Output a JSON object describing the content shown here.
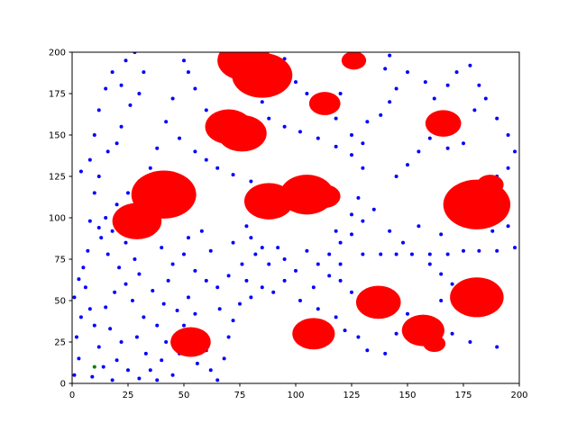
{
  "chart_data": {
    "type": "scatter",
    "xlim": [
      0,
      200
    ],
    "ylim": [
      0,
      200
    ],
    "xticks": [
      0,
      25,
      50,
      75,
      100,
      125,
      150,
      175,
      200
    ],
    "yticks": [
      0,
      25,
      50,
      75,
      100,
      125,
      150,
      175,
      200
    ],
    "points": {
      "color": "#0000ff",
      "x": [
        1,
        3,
        2,
        4,
        1,
        6,
        3,
        8,
        10,
        12,
        14,
        9,
        18,
        20,
        22,
        17,
        15,
        19,
        24,
        21,
        16,
        13,
        18,
        24,
        28,
        30,
        27,
        32,
        29,
        33,
        35,
        38,
        40,
        42,
        38,
        41,
        36,
        43,
        45,
        40,
        34,
        8,
        12,
        5,
        7,
        25,
        30,
        45,
        48,
        50,
        47,
        52,
        55,
        58,
        60,
        56,
        62,
        65,
        68,
        70,
        72,
        66,
        75,
        80,
        78,
        85,
        90,
        95,
        100,
        95,
        88,
        82,
        76,
        70,
        65,
        60,
        55,
        50,
        52,
        58,
        62,
        72,
        80,
        78,
        85,
        92,
        105,
        110,
        115,
        108,
        102,
        110,
        118,
        122,
        128,
        132,
        140,
        145,
        150,
        125,
        120,
        115,
        120,
        118,
        125,
        130,
        125,
        120,
        130,
        138,
        145,
        152,
        160,
        168,
        175,
        182,
        190,
        198,
        195,
        188,
        160,
        165,
        170,
        165,
        162,
        170,
        178,
        190,
        165,
        155,
        148,
        142,
        135,
        128,
        130,
        125,
        118,
        110,
        102,
        95,
        88,
        125,
        130,
        132,
        138,
        142,
        145,
        140,
        142,
        150,
        158,
        162,
        168,
        172,
        178,
        182,
        185,
        180,
        190,
        195,
        198,
        195,
        190,
        175,
        168,
        160,
        155,
        150,
        145,
        85,
        90,
        92,
        95,
        100,
        105,
        120,
        118,
        60,
        55,
        52,
        50,
        45,
        42,
        48,
        55,
        60,
        65,
        72,
        80,
        38,
        35,
        30,
        25,
        20,
        15,
        10,
        12,
        8,
        4,
        10,
        12,
        15,
        18,
        22,
        24,
        28,
        26,
        22,
        20,
        16,
        30,
        32
      ],
      "y": [
        5,
        15,
        28,
        40,
        52,
        58,
        63,
        45,
        35,
        22,
        10,
        4,
        2,
        14,
        25,
        33,
        46,
        55,
        60,
        70,
        78,
        88,
        92,
        85,
        75,
        66,
        50,
        40,
        28,
        18,
        8,
        2,
        14,
        25,
        35,
        48,
        56,
        62,
        72,
        82,
        90,
        98,
        94,
        70,
        80,
        8,
        3,
        5,
        18,
        35,
        44,
        52,
        42,
        30,
        20,
        12,
        8,
        2,
        15,
        28,
        38,
        45,
        48,
        52,
        62,
        58,
        55,
        62,
        68,
        75,
        72,
        78,
        72,
        65,
        58,
        62,
        68,
        78,
        88,
        92,
        80,
        85,
        88,
        95,
        82,
        82,
        80,
        72,
        65,
        58,
        50,
        45,
        40,
        32,
        28,
        20,
        18,
        30,
        42,
        55,
        62,
        78,
        85,
        92,
        90,
        98,
        102,
        72,
        78,
        78,
        78,
        78,
        78,
        78,
        80,
        80,
        80,
        82,
        95,
        92,
        72,
        66,
        60,
        50,
        38,
        30,
        25,
        22,
        90,
        95,
        85,
        92,
        105,
        112,
        130,
        138,
        143,
        148,
        152,
        155,
        160,
        150,
        145,
        158,
        162,
        170,
        178,
        190,
        198,
        188,
        182,
        172,
        180,
        188,
        192,
        180,
        172,
        165,
        160,
        150,
        140,
        130,
        125,
        145,
        142,
        148,
        140,
        132,
        125,
        170,
        178,
        190,
        196,
        182,
        175,
        175,
        160,
        165,
        178,
        188,
        195,
        172,
        158,
        148,
        140,
        135,
        130,
        126,
        122,
        142,
        130,
        122,
        115,
        108,
        100,
        115,
        125,
        135,
        128,
        150,
        165,
        178,
        188,
        180,
        195,
        200,
        168,
        155,
        145,
        140,
        175,
        188
      ]
    },
    "start": {
      "color": "#008000",
      "x": [
        10
      ],
      "y": [
        10
      ]
    },
    "obstacles": {
      "color": "#ff0000",
      "x": [
        181,
        41,
        29,
        88,
        105,
        113,
        85,
        77,
        70,
        76,
        113,
        126,
        166,
        187,
        181,
        137,
        157,
        162,
        108,
        53
      ],
      "y": [
        108,
        114,
        98,
        110,
        114,
        113,
        186,
        195,
        155,
        151,
        169,
        195,
        157,
        120,
        52,
        49,
        32,
        24,
        30,
        25
      ],
      "r": [
        15,
        14.5,
        11,
        11,
        12,
        7,
        13.5,
        12,
        10.5,
        11,
        7,
        5.5,
        8,
        6,
        12,
        10,
        9.5,
        5,
        9.5,
        9
      ]
    }
  }
}
